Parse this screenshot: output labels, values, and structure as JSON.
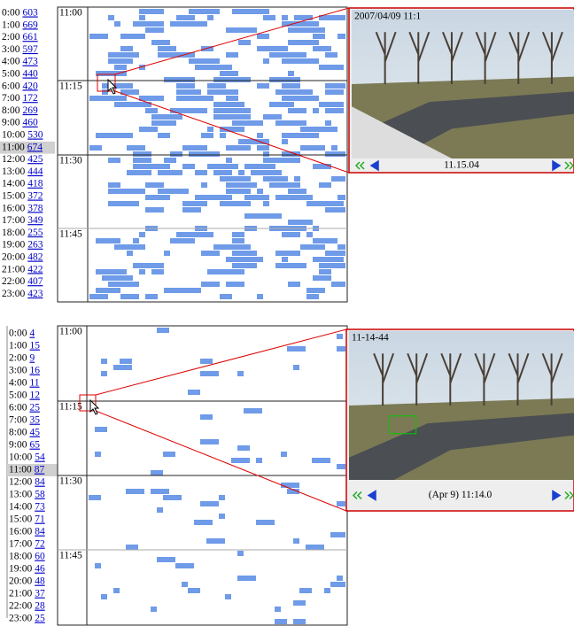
{
  "panels": [
    {
      "hours": [
        {
          "time": "0:00",
          "count": 603
        },
        {
          "time": "1:00",
          "count": 669
        },
        {
          "time": "2:00",
          "count": 661
        },
        {
          "time": "3:00",
          "count": 597
        },
        {
          "time": "4:00",
          "count": 473
        },
        {
          "time": "5:00",
          "count": 440
        },
        {
          "time": "6:00",
          "count": 420
        },
        {
          "time": "7:00",
          "count": 172
        },
        {
          "time": "8:00",
          "count": 269
        },
        {
          "time": "9:00",
          "count": 460
        },
        {
          "time": "10:00",
          "count": 530
        },
        {
          "time": "11:00",
          "count": 674
        },
        {
          "time": "12:00",
          "count": 425
        },
        {
          "time": "13:00",
          "count": 444
        },
        {
          "time": "14:00",
          "count": 418
        },
        {
          "time": "15:00",
          "count": 372
        },
        {
          "time": "16:00",
          "count": 378
        },
        {
          "time": "17:00",
          "count": 349
        },
        {
          "time": "18:00",
          "count": 255
        },
        {
          "time": "19:00",
          "count": 263
        },
        {
          "time": "20:00",
          "count": 482
        },
        {
          "time": "21:00",
          "count": 422
        },
        {
          "time": "22:00",
          "count": 407
        },
        {
          "time": "23:00",
          "count": 423
        }
      ],
      "sections": [
        "11:00",
        "11:15",
        "11:30",
        "11:45"
      ],
      "video_overlay": "2007/04/09 11:1",
      "timestamp": "11.15.04"
    },
    {
      "hours": [
        {
          "time": "0:00",
          "count": 4
        },
        {
          "time": "1:00",
          "count": 15
        },
        {
          "time": "2:00",
          "count": 9
        },
        {
          "time": "3:00",
          "count": 16
        },
        {
          "time": "4:00",
          "count": 11
        },
        {
          "time": "5:00",
          "count": 12
        },
        {
          "time": "6:00",
          "count": 25
        },
        {
          "time": "7:00",
          "count": 35
        },
        {
          "time": "8:00",
          "count": 45
        },
        {
          "time": "9:00",
          "count": 65
        },
        {
          "time": "10:00",
          "count": 54
        },
        {
          "time": "11:00",
          "count": 87
        },
        {
          "time": "12:00",
          "count": 84
        },
        {
          "time": "13:00",
          "count": 58
        },
        {
          "time": "14:00",
          "count": 73
        },
        {
          "time": "15:00",
          "count": 71
        },
        {
          "time": "16:00",
          "count": 84
        },
        {
          "time": "17:00",
          "count": 72
        },
        {
          "time": "18:00",
          "count": 60
        },
        {
          "time": "19:00",
          "count": 46
        },
        {
          "time": "20:00",
          "count": 48
        },
        {
          "time": "21:00",
          "count": 37
        },
        {
          "time": "22:00",
          "count": 28
        },
        {
          "time": "23:00",
          "count": 25
        }
      ],
      "sections": [
        "11:00",
        "11:15",
        "11:30",
        "11:45"
      ],
      "video_overlay": "11-14-44",
      "timestamp": "(Apr 9) 11:14.0"
    }
  ]
}
